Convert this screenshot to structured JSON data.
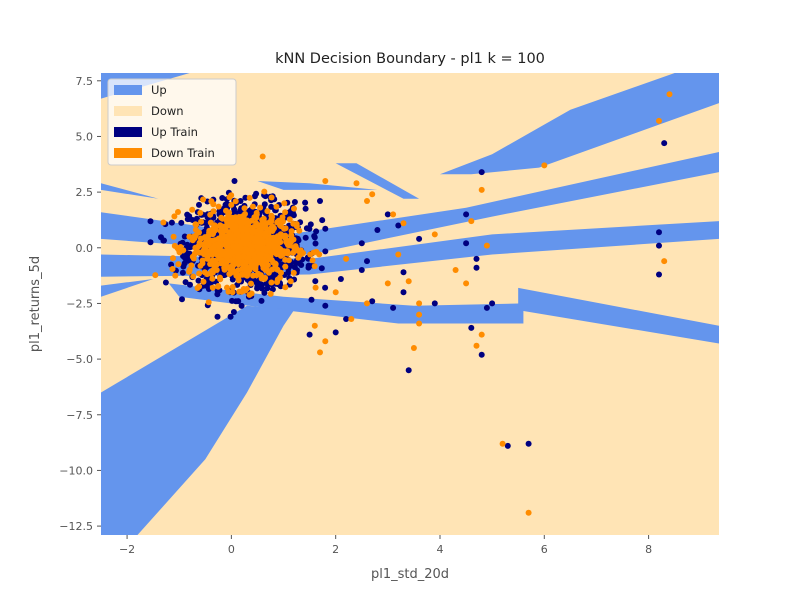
{
  "chart_data": {
    "type": "scatter",
    "title": "kNN Decision Boundary - pl1 k = 100",
    "xlabel": "pl1_std_20d",
    "ylabel": "pl1_returns_5d",
    "xlim": [
      -2.5,
      9.35
    ],
    "ylim": [
      -12.9,
      7.85
    ],
    "xticks": [
      -2,
      0,
      2,
      4,
      6,
      8
    ],
    "yticks": [
      7.5,
      5.0,
      2.5,
      0.0,
      -2.5,
      -5.0,
      -7.5,
      -10.0,
      -12.5
    ],
    "grid": false,
    "legend_position": "top-left",
    "legend": [
      {
        "label": "Up",
        "color": "#6495ED"
      },
      {
        "label": "Down",
        "color": "#FFE4B5"
      },
      {
        "label": "Up Train",
        "color": "#000080"
      },
      {
        "label": "Down Train",
        "color": "#FF8C00"
      }
    ],
    "regions": [
      {
        "class": "Up",
        "polygon": [
          [
            -2.5,
            1.6
          ],
          [
            0.8,
            0.5
          ],
          [
            4.5,
            1.8
          ],
          [
            9.35,
            4.3
          ],
          [
            9.35,
            3.4
          ],
          [
            5,
            1.4
          ],
          [
            1.5,
            -0.3
          ],
          [
            -2.5,
            0.4
          ]
        ]
      },
      {
        "class": "Up",
        "polygon": [
          [
            -2.5,
            -0.3
          ],
          [
            1.5,
            -0.5
          ],
          [
            5,
            0.6
          ],
          [
            9.35,
            1.2
          ],
          [
            9.35,
            0.4
          ],
          [
            5,
            -0.3
          ],
          [
            1.5,
            -1.2
          ],
          [
            -2.5,
            -1.3
          ]
        ]
      },
      {
        "class": "Up",
        "polygon": [
          [
            -1.2,
            -1.6
          ],
          [
            1,
            -2.2
          ],
          [
            3.5,
            -2.6
          ],
          [
            5.6,
            -2.5
          ],
          [
            5.6,
            -3.4
          ],
          [
            3.2,
            -3.4
          ],
          [
            1,
            -2.8
          ],
          [
            -1,
            -2.2
          ]
        ]
      },
      {
        "class": "Up",
        "polygon": [
          [
            5.5,
            -1.8
          ],
          [
            9.35,
            -3.5
          ],
          [
            9.35,
            -4.3
          ],
          [
            5.5,
            -2.8
          ]
        ]
      },
      {
        "class": "Up",
        "polygon": [
          [
            0.3,
            -2.6
          ],
          [
            -2.5,
            -6.5
          ],
          [
            -2.5,
            -12.9
          ],
          [
            -1.8,
            -12.9
          ],
          [
            -0.5,
            -9.5
          ],
          [
            0.3,
            -6.5
          ],
          [
            1,
            -3.5
          ],
          [
            1.2,
            -2.8
          ]
        ]
      },
      {
        "class": "Up",
        "polygon": [
          [
            -1.4,
            2.2
          ],
          [
            -2.5,
            2.9
          ],
          [
            -2.5,
            2.6
          ]
        ]
      },
      {
        "class": "Up",
        "polygon": [
          [
            0.5,
            3
          ],
          [
            1,
            2.6
          ],
          [
            2.8,
            2.6
          ],
          [
            1.5,
            2.9
          ]
        ]
      },
      {
        "class": "Up",
        "polygon": [
          [
            2,
            3.8
          ],
          [
            3.3,
            2.2
          ],
          [
            3.6,
            2.2
          ],
          [
            2.4,
            3.8
          ]
        ]
      },
      {
        "class": "Up",
        "polygon": [
          [
            4.6,
            3.3
          ],
          [
            5.9,
            3.6
          ],
          [
            9.35,
            6.5
          ],
          [
            9.35,
            7.85
          ],
          [
            8.5,
            7.85
          ],
          [
            6.5,
            6.2
          ],
          [
            5,
            4.2
          ],
          [
            4,
            3.3
          ]
        ]
      },
      {
        "class": "Up",
        "polygon": [
          [
            -2.5,
            7.85
          ],
          [
            -0.8,
            7.85
          ],
          [
            -2.5,
            6.7
          ]
        ]
      },
      {
        "class": "Up",
        "polygon": [
          [
            -1.5,
            -1.4
          ],
          [
            -2.5,
            -2.2
          ],
          [
            -2.5,
            -1.7
          ]
        ]
      }
    ],
    "series": [
      {
        "name": "Up Train",
        "color": "#000080",
        "points": [
          [
            4.8,
            3.4
          ],
          [
            8.3,
            4.7
          ],
          [
            2.5,
            0.2
          ],
          [
            2.6,
            -0.6
          ],
          [
            3.3,
            -1.1
          ],
          [
            3.6,
            0.4
          ],
          [
            4.7,
            -0.5
          ],
          [
            4.5,
            1.5
          ],
          [
            4.5,
            0.2
          ],
          [
            4.7,
            -0.9
          ],
          [
            4.9,
            -2.7
          ],
          [
            5.0,
            -2.5
          ],
          [
            4.6,
            -3.6
          ],
          [
            4.8,
            -4.8
          ],
          [
            3.4,
            -5.5
          ],
          [
            8.2,
            0.7
          ],
          [
            8.2,
            0.1
          ],
          [
            8.2,
            -1.2
          ],
          [
            5.3,
            -8.9
          ],
          [
            5.7,
            -8.8
          ],
          [
            3.0,
            1.5
          ],
          [
            3.2,
            1.0
          ],
          [
            2.7,
            -2.4
          ],
          [
            2.2,
            -3.2
          ],
          [
            2.0,
            -3.8
          ],
          [
            1.5,
            -3.9
          ],
          [
            1.8,
            -2.6
          ],
          [
            2.1,
            -1.4
          ],
          [
            2.5,
            -1.0
          ],
          [
            3.1,
            -2.7
          ],
          [
            3.3,
            -2.0
          ],
          [
            2.8,
            0.8
          ],
          [
            3.9,
            -2.5
          ],
          [
            1.7,
            2.1
          ]
        ]
      },
      {
        "name": "Down Train",
        "color": "#FF8C00",
        "points": [
          [
            8.4,
            6.9
          ],
          [
            8.2,
            5.7
          ],
          [
            6.0,
            3.7
          ],
          [
            8.3,
            -0.6
          ],
          [
            4.3,
            -1.0
          ],
          [
            4.5,
            -1.6
          ],
          [
            4.9,
            0.1
          ],
          [
            4.6,
            1.2
          ],
          [
            3.9,
            0.6
          ],
          [
            3.4,
            -1.5
          ],
          [
            3.6,
            -3.4
          ],
          [
            3.6,
            -3.0
          ],
          [
            3.5,
            -4.5
          ],
          [
            4.7,
            -4.4
          ],
          [
            4.8,
            -3.9
          ],
          [
            5.2,
            -8.8
          ],
          [
            5.7,
            -11.9
          ],
          [
            2.3,
            -3.2
          ],
          [
            2.6,
            -2.5
          ],
          [
            1.8,
            -4.2
          ],
          [
            1.7,
            -4.7
          ],
          [
            2.4,
            2.9
          ],
          [
            2.6,
            2.1
          ],
          [
            2.7,
            2.4
          ],
          [
            3.1,
            1.5
          ],
          [
            3.3,
            1.1
          ],
          [
            3.6,
            -2.5
          ],
          [
            3.0,
            -1.6
          ],
          [
            2.2,
            -0.5
          ],
          [
            2.0,
            -2.0
          ],
          [
            1.6,
            -3.5
          ],
          [
            3.2,
            -0.3
          ],
          [
            4.8,
            2.6
          ],
          [
            1.8,
            3.0
          ],
          [
            0.6,
            4.1
          ]
        ]
      }
    ],
    "clusters": [
      {
        "class": "Up Train",
        "center": [
          0.3,
          0.1
        ],
        "spread": [
          0.55,
          0.95
        ],
        "count": 1100
      },
      {
        "class": "Down Train",
        "center": [
          0.2,
          0.05
        ],
        "spread": [
          0.5,
          0.85
        ],
        "count": 700
      }
    ]
  }
}
